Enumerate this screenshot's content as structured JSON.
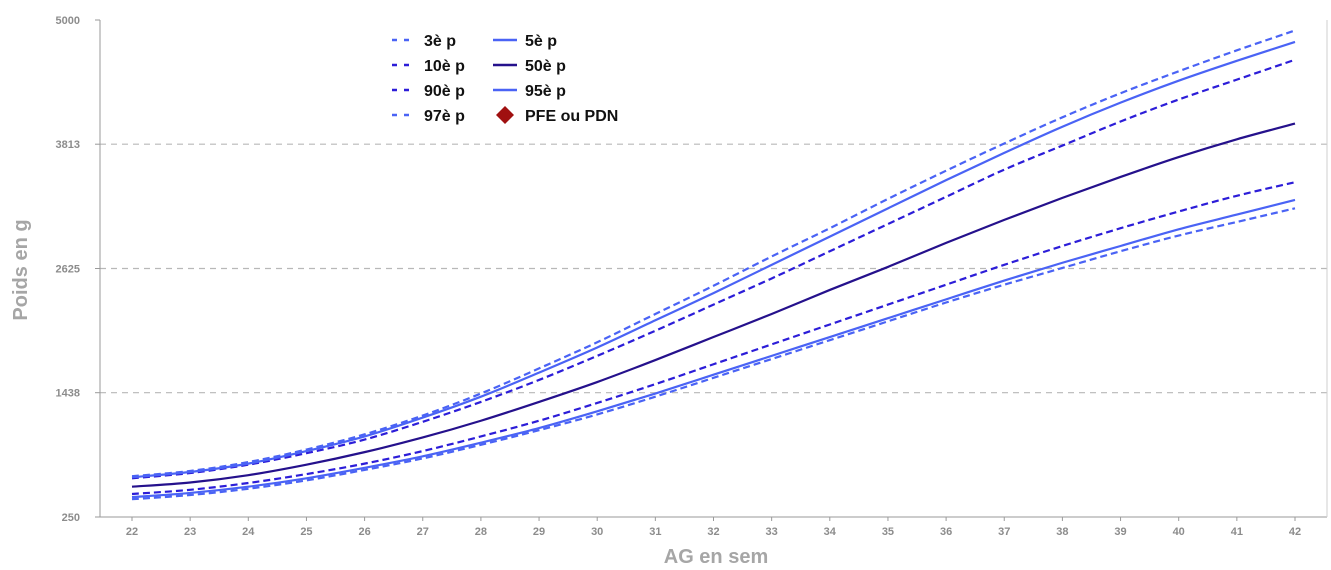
{
  "chart_data": {
    "type": "line",
    "title": "",
    "xlabel": "AG en sem",
    "ylabel": "Poids en g",
    "xlim": [
      22,
      42
    ],
    "ylim": [
      250,
      5000
    ],
    "x_ticks": [
      "22",
      "23",
      "24",
      "25",
      "26",
      "27",
      "28",
      "29",
      "30",
      "31",
      "32",
      "33",
      "34",
      "35",
      "36",
      "37",
      "38",
      "39",
      "40",
      "41",
      "42"
    ],
    "y_ticks": [
      "250",
      "1438",
      "2625",
      "3813",
      "5000"
    ],
    "grid": "horizontal dashed",
    "legend_position": "top-left",
    "x": [
      22,
      23,
      24,
      25,
      26,
      27,
      28,
      29,
      30,
      31,
      32,
      33,
      34,
      35,
      36,
      37,
      38,
      39,
      40,
      41,
      42
    ],
    "series": [
      {
        "name": "3è p",
        "dash": "dashed",
        "color": "#4a63f5",
        "values": [
          420,
          460,
          520,
          600,
          700,
          810,
          940,
          1080,
          1230,
          1400,
          1580,
          1760,
          1940,
          2120,
          2300,
          2470,
          2630,
          2790,
          2940,
          3070,
          3200
        ]
      },
      {
        "name": "5è p",
        "dash": "solid",
        "color": "#4a63f5",
        "values": [
          440,
          480,
          540,
          620,
          720,
          830,
          960,
          1100,
          1260,
          1430,
          1610,
          1790,
          1970,
          2150,
          2330,
          2510,
          2680,
          2840,
          3000,
          3140,
          3280
        ]
      },
      {
        "name": "10è p",
        "dash": "dashed",
        "color": "#2c1dd8",
        "values": [
          470,
          510,
          575,
          660,
          760,
          880,
          1020,
          1170,
          1340,
          1520,
          1710,
          1900,
          2090,
          2280,
          2470,
          2660,
          2840,
          3010,
          3170,
          3320,
          3450
        ]
      },
      {
        "name": "50è p",
        "dash": "solid",
        "color": "#25118c",
        "values": [
          540,
          580,
          650,
          750,
          870,
          1010,
          1170,
          1350,
          1540,
          1750,
          1970,
          2190,
          2420,
          2640,
          2870,
          3090,
          3300,
          3500,
          3690,
          3860,
          4010
        ]
      },
      {
        "name": "90è p",
        "dash": "dashed",
        "color": "#2c1dd8",
        "values": [
          620,
          670,
          750,
          860,
          990,
          1160,
          1350,
          1560,
          1790,
          2030,
          2280,
          2530,
          2790,
          3050,
          3310,
          3570,
          3800,
          4030,
          4240,
          4430,
          4620
        ]
      },
      {
        "name": "95è p",
        "dash": "solid",
        "color": "#4a63f5",
        "values": [
          630,
          680,
          760,
          880,
          1020,
          1200,
          1400,
          1630,
          1870,
          2130,
          2390,
          2660,
          2930,
          3200,
          3470,
          3730,
          3980,
          4210,
          4420,
          4610,
          4790
        ]
      },
      {
        "name": "97è p",
        "dash": "dashed",
        "color": "#4a63f5",
        "values": [
          640,
          690,
          775,
          895,
          1040,
          1220,
          1430,
          1670,
          1920,
          2190,
          2460,
          2740,
          3010,
          3290,
          3560,
          3820,
          4070,
          4300,
          4510,
          4710,
          4900
        ]
      }
    ],
    "legend": [
      {
        "label": "3è p",
        "kind": "dashed",
        "color": "#4a63f5"
      },
      {
        "label": "5è p",
        "kind": "solid",
        "color": "#4a63f5"
      },
      {
        "label": "10è p",
        "kind": "dashed",
        "color": "#2c1dd8"
      },
      {
        "label": "50è p",
        "kind": "solid",
        "color": "#25118c"
      },
      {
        "label": "90è p",
        "kind": "dashed",
        "color": "#2c1dd8"
      },
      {
        "label": "95è p",
        "kind": "solid",
        "color": "#4a63f5"
      },
      {
        "label": "97è p",
        "kind": "dashed",
        "color": "#4a63f5"
      },
      {
        "label": "PFE ou PDN",
        "kind": "diamond",
        "color": "#a01010"
      }
    ]
  }
}
